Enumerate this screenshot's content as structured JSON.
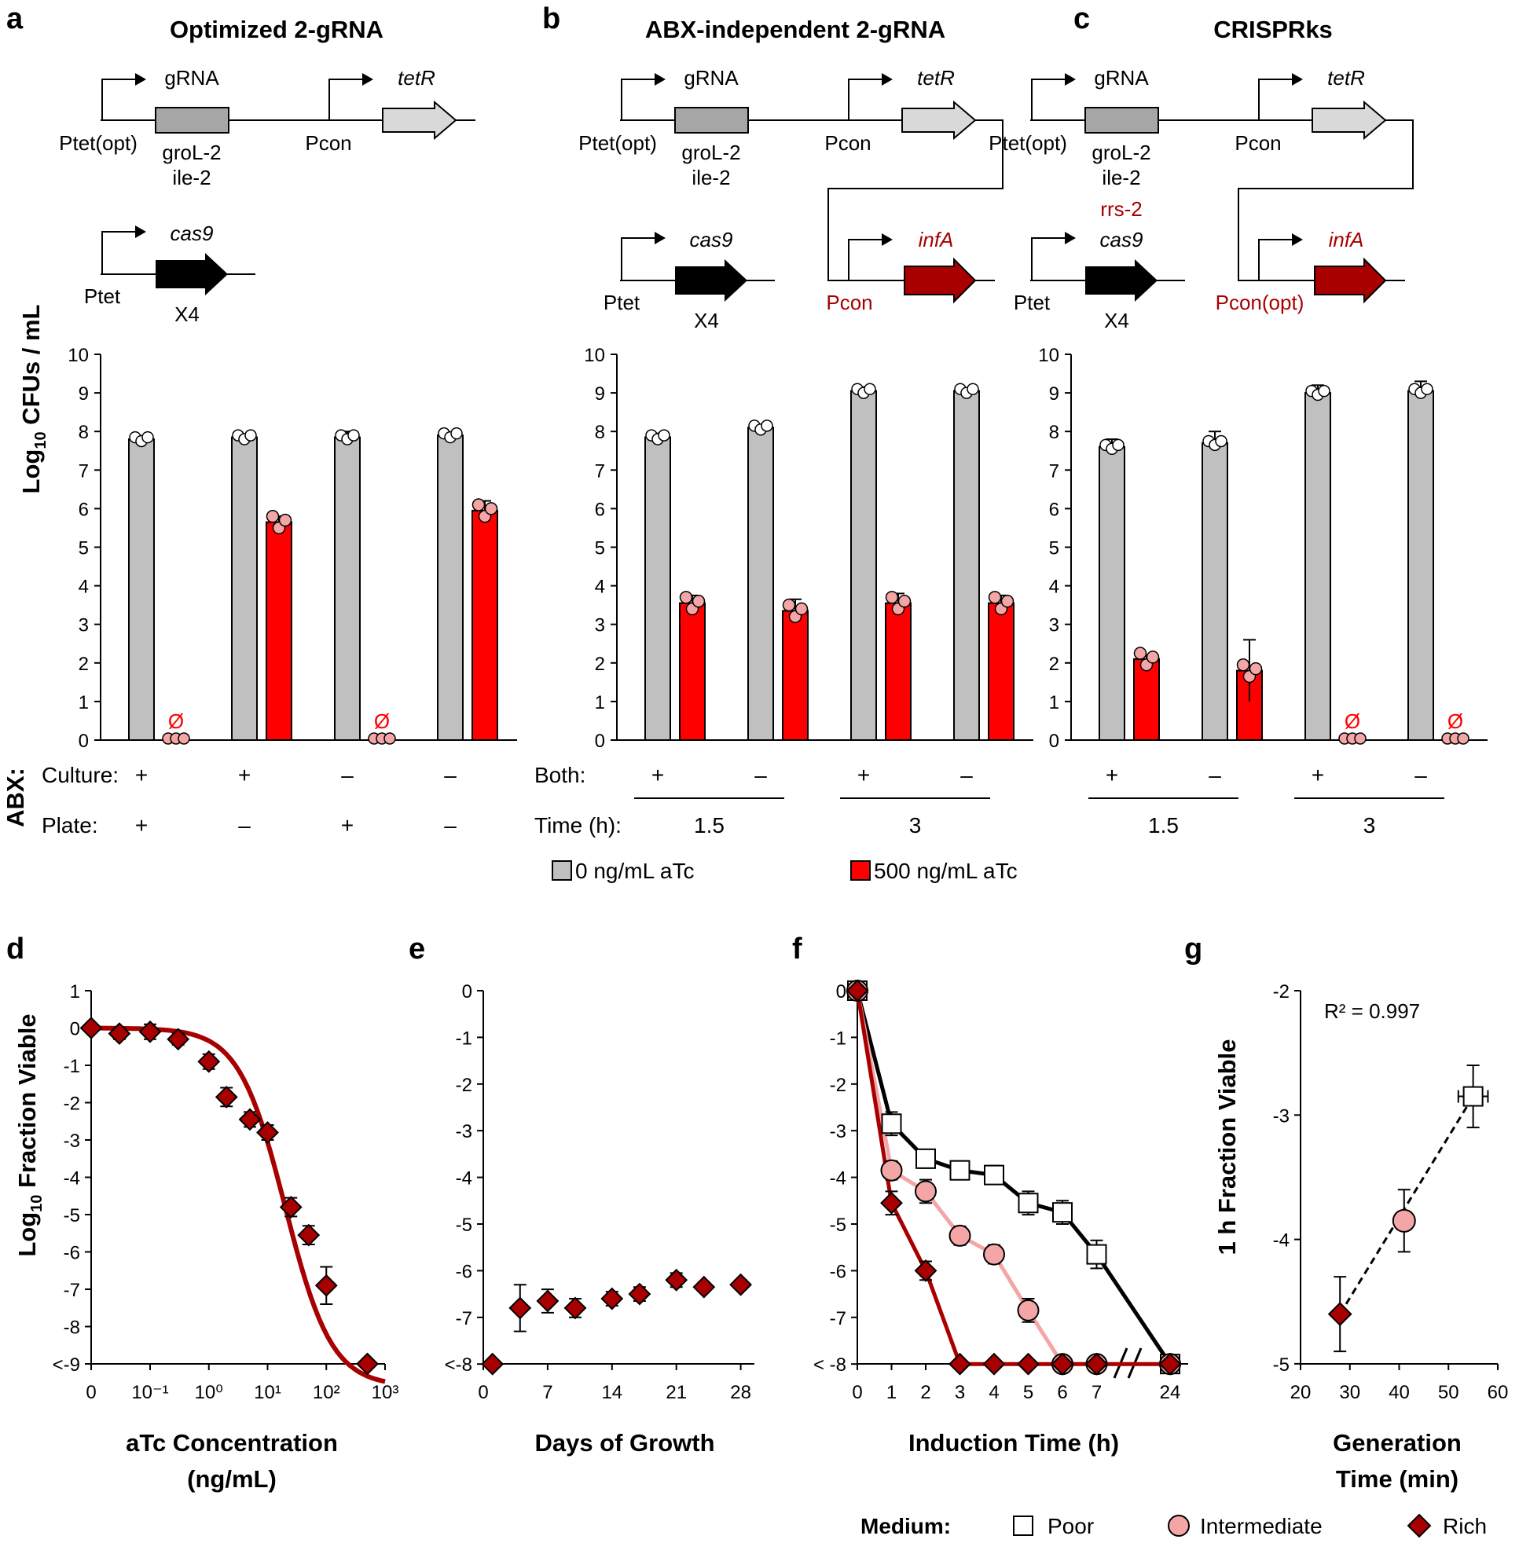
{
  "panels_top": [
    {
      "letter": "a",
      "title": "Optimized 2-gRNA",
      "construct": {
        "promoter1": "Ptet(opt)",
        "gene1": "gRNA",
        "gene1_sub": [
          "groL-2",
          "ile-2"
        ],
        "gene1_sub_red": "",
        "promoter2": "Pcon",
        "gene2": "tetR",
        "promoter3": "Ptet",
        "gene3": "cas9",
        "gene3_sub": "X4",
        "promoter4": "",
        "gene4": ""
      }
    },
    {
      "letter": "b",
      "title": "ABX-independent 2-gRNA",
      "construct": {
        "promoter1": "Ptet(opt)",
        "gene1": "gRNA",
        "gene1_sub": [
          "groL-2",
          "ile-2"
        ],
        "gene1_sub_red": "",
        "promoter2": "Pcon",
        "gene2": "tetR",
        "promoter3": "Ptet",
        "gene3": "cas9",
        "gene3_sub": "X4",
        "promoter4": "Pcon",
        "gene4": "infA"
      }
    },
    {
      "letter": "c",
      "title": "CRISPRks",
      "construct": {
        "promoter1": "Ptet(opt)",
        "gene1": "gRNA",
        "gene1_sub": [
          "groL-2",
          "ile-2"
        ],
        "gene1_sub_red": "rrs-2",
        "promoter2": "Pcon",
        "gene2": "tetR",
        "promoter3": "Ptet",
        "gene3": "cas9",
        "gene3_sub": "X4",
        "promoter4": "Pcon(opt)",
        "gene4": "infA"
      }
    }
  ],
  "labels": {
    "abx": "ABX:",
    "culture": "Culture:",
    "plate": "Plate:",
    "both": "Both:",
    "time": "Time (h):",
    "t15": "1.5",
    "t3": "3",
    "plus": "+",
    "minus": "–",
    "null": "Ø",
    "legend_top": [
      "0 ng/mL aTc",
      "500 ng/mL aTc"
    ],
    "medium": "Medium:",
    "medium_items": [
      "Poor",
      "Intermediate",
      "Rich"
    ],
    "ylab_top": [
      "Log",
      "10",
      " CFUs / mL"
    ]
  },
  "colors": {
    "gray": "#c0c0c0",
    "red": "#ff0000",
    "pink": "#f4a5a5",
    "darkred": "#a80000",
    "black": "#000000"
  },
  "chart_data": [
    {
      "panel": "a",
      "type": "bar",
      "ylabel": "Log10 CFUs / mL",
      "ylim": [
        0,
        10
      ],
      "categories": [
        "Culture + / Plate +",
        "Culture + / Plate –",
        "Culture – / Plate +",
        "Culture – / Plate –"
      ],
      "series": [
        {
          "name": "0 ng/mL aTc",
          "values": [
            7.8,
            7.85,
            7.85,
            7.9
          ],
          "err": [
            0.05,
            0.05,
            0.15,
            0.05
          ]
        },
        {
          "name": "500 ng/mL aTc",
          "values": [
            0,
            5.65,
            0,
            5.95
          ],
          "err": [
            0,
            0.15,
            0,
            0.25
          ]
        }
      ]
    },
    {
      "panel": "b",
      "type": "bar",
      "ylabel": "",
      "ylim": [
        0,
        10
      ],
      "categories": [
        "1.5 h ABX +",
        "1.5 h ABX –",
        "3 h ABX +",
        "3 h ABX –"
      ],
      "series": [
        {
          "name": "0 ng/mL aTc",
          "values": [
            7.85,
            8.1,
            9.05,
            9.05
          ],
          "err": [
            0.1,
            0.05,
            0.1,
            0.05
          ]
        },
        {
          "name": "500 ng/mL aTc",
          "values": [
            3.55,
            3.35,
            3.55,
            3.55
          ],
          "err": [
            0.2,
            0.3,
            0.25,
            0.2
          ]
        }
      ]
    },
    {
      "panel": "c",
      "type": "bar",
      "ylabel": "",
      "ylim": [
        0,
        10
      ],
      "categories": [
        "1.5 h ABX +",
        "1.5 h ABX –",
        "3 h ABX +",
        "3 h ABX –"
      ],
      "series": [
        {
          "name": "0 ng/mL aTc",
          "values": [
            7.6,
            7.7,
            9.0,
            9.05
          ],
          "err": [
            0.2,
            0.3,
            0.2,
            0.25
          ]
        },
        {
          "name": "500 ng/mL aTc",
          "values": [
            2.1,
            1.8,
            0,
            0
          ],
          "err": [
            0.1,
            0.8,
            0,
            0
          ]
        }
      ]
    },
    {
      "panel": "d",
      "type": "line",
      "xlabel": "aTc Concentration (ng/mL)",
      "ylabel": "Log10 Fraction Viable",
      "xticks": [
        "0",
        "10⁻¹",
        "10⁰",
        "10¹",
        "10²",
        "10³"
      ],
      "yticks": [
        "1",
        "0",
        "-1",
        "-2",
        "-3",
        "-4",
        "-5",
        "-6",
        "-7",
        "-8",
        "<-9"
      ],
      "x": [
        0,
        0.03,
        0.1,
        0.3,
        1,
        2,
        5,
        10,
        25,
        50,
        100,
        500
      ],
      "y": [
        0,
        -0.15,
        -0.1,
        -0.3,
        -0.9,
        -1.85,
        -2.45,
        -2.8,
        -4.8,
        -5.55,
        -6.9,
        -9
      ],
      "err": [
        0.1,
        0.15,
        0.2,
        0.15,
        0.2,
        0.25,
        0.2,
        0.2,
        0.25,
        0.25,
        0.5,
        0
      ]
    },
    {
      "panel": "e",
      "type": "scatter",
      "xlabel": "Days of Growth",
      "ylabel": "",
      "xticks": [
        "0",
        "7",
        "14",
        "21",
        "28"
      ],
      "yticks": [
        "0",
        "-1",
        "-2",
        "-3",
        "-4",
        "-5",
        "-6",
        "-7",
        "<-8"
      ],
      "x": [
        1,
        4,
        7,
        10,
        14,
        17,
        21,
        24,
        28
      ],
      "y": [
        -8,
        -6.8,
        -6.65,
        -6.8,
        -6.6,
        -6.5,
        -6.2,
        -6.35,
        -6.3
      ],
      "err": [
        0,
        0.5,
        0.25,
        0.2,
        0.15,
        0.15,
        0.15,
        0.1,
        0.1
      ]
    },
    {
      "panel": "f",
      "type": "line",
      "xlabel": "Induction Time (h)",
      "ylabel": "",
      "xticks": [
        "0",
        "1",
        "2",
        "3",
        "4",
        "5",
        "6",
        "7",
        "24"
      ],
      "yticks": [
        "0",
        "-1",
        "-2",
        "-3",
        "-4",
        "-5",
        "-6",
        "-7",
        "< -8"
      ],
      "series": [
        {
          "name": "Poor",
          "x": [
            0,
            1,
            2,
            3,
            4,
            5,
            6,
            7,
            24
          ],
          "y": [
            0,
            -2.85,
            -3.6,
            -3.85,
            -3.95,
            -4.55,
            -4.75,
            -5.65,
            -8
          ],
          "err": [
            0,
            0.25,
            0.2,
            0.2,
            0.2,
            0.25,
            0.25,
            0.3,
            0
          ]
        },
        {
          "name": "Intermediate",
          "x": [
            0,
            1,
            2,
            3,
            4,
            5,
            6,
            7,
            24
          ],
          "y": [
            0,
            -3.85,
            -4.3,
            -5.25,
            -5.65,
            -6.85,
            -8,
            -8,
            -8
          ],
          "err": [
            0,
            0.2,
            0.25,
            0.2,
            0.2,
            0.25,
            0,
            0,
            0
          ]
        },
        {
          "name": "Rich",
          "x": [
            0,
            1,
            2,
            3,
            4,
            5,
            6,
            7,
            24
          ],
          "y": [
            0,
            -4.55,
            -6.0,
            -8,
            -8,
            -8,
            -8,
            -8,
            -8
          ],
          "err": [
            0,
            0.25,
            0.2,
            0,
            0,
            0,
            0,
            0,
            0
          ]
        }
      ]
    },
    {
      "panel": "g",
      "type": "scatter",
      "xlabel": "Generation Time (min)",
      "ylabel": "1 h Fraction Viable",
      "annotation": "R² = 0.997",
      "xlim": [
        20,
        60
      ],
      "ylim": [
        -5,
        -2
      ],
      "xticks": [
        "20",
        "30",
        "40",
        "50",
        "60"
      ],
      "yticks": [
        "-2",
        "-3",
        "-4",
        "-5"
      ],
      "points": [
        {
          "name": "Poor",
          "x": 55,
          "y": -2.85,
          "xerr": 3,
          "yerr": 0.25
        },
        {
          "name": "Intermediate",
          "x": 41,
          "y": -3.85,
          "xerr": 0,
          "yerr": 0.25
        },
        {
          "name": "Rich",
          "x": 28,
          "y": -4.6,
          "xerr": 0,
          "yerr": 0.3
        }
      ]
    }
  ]
}
